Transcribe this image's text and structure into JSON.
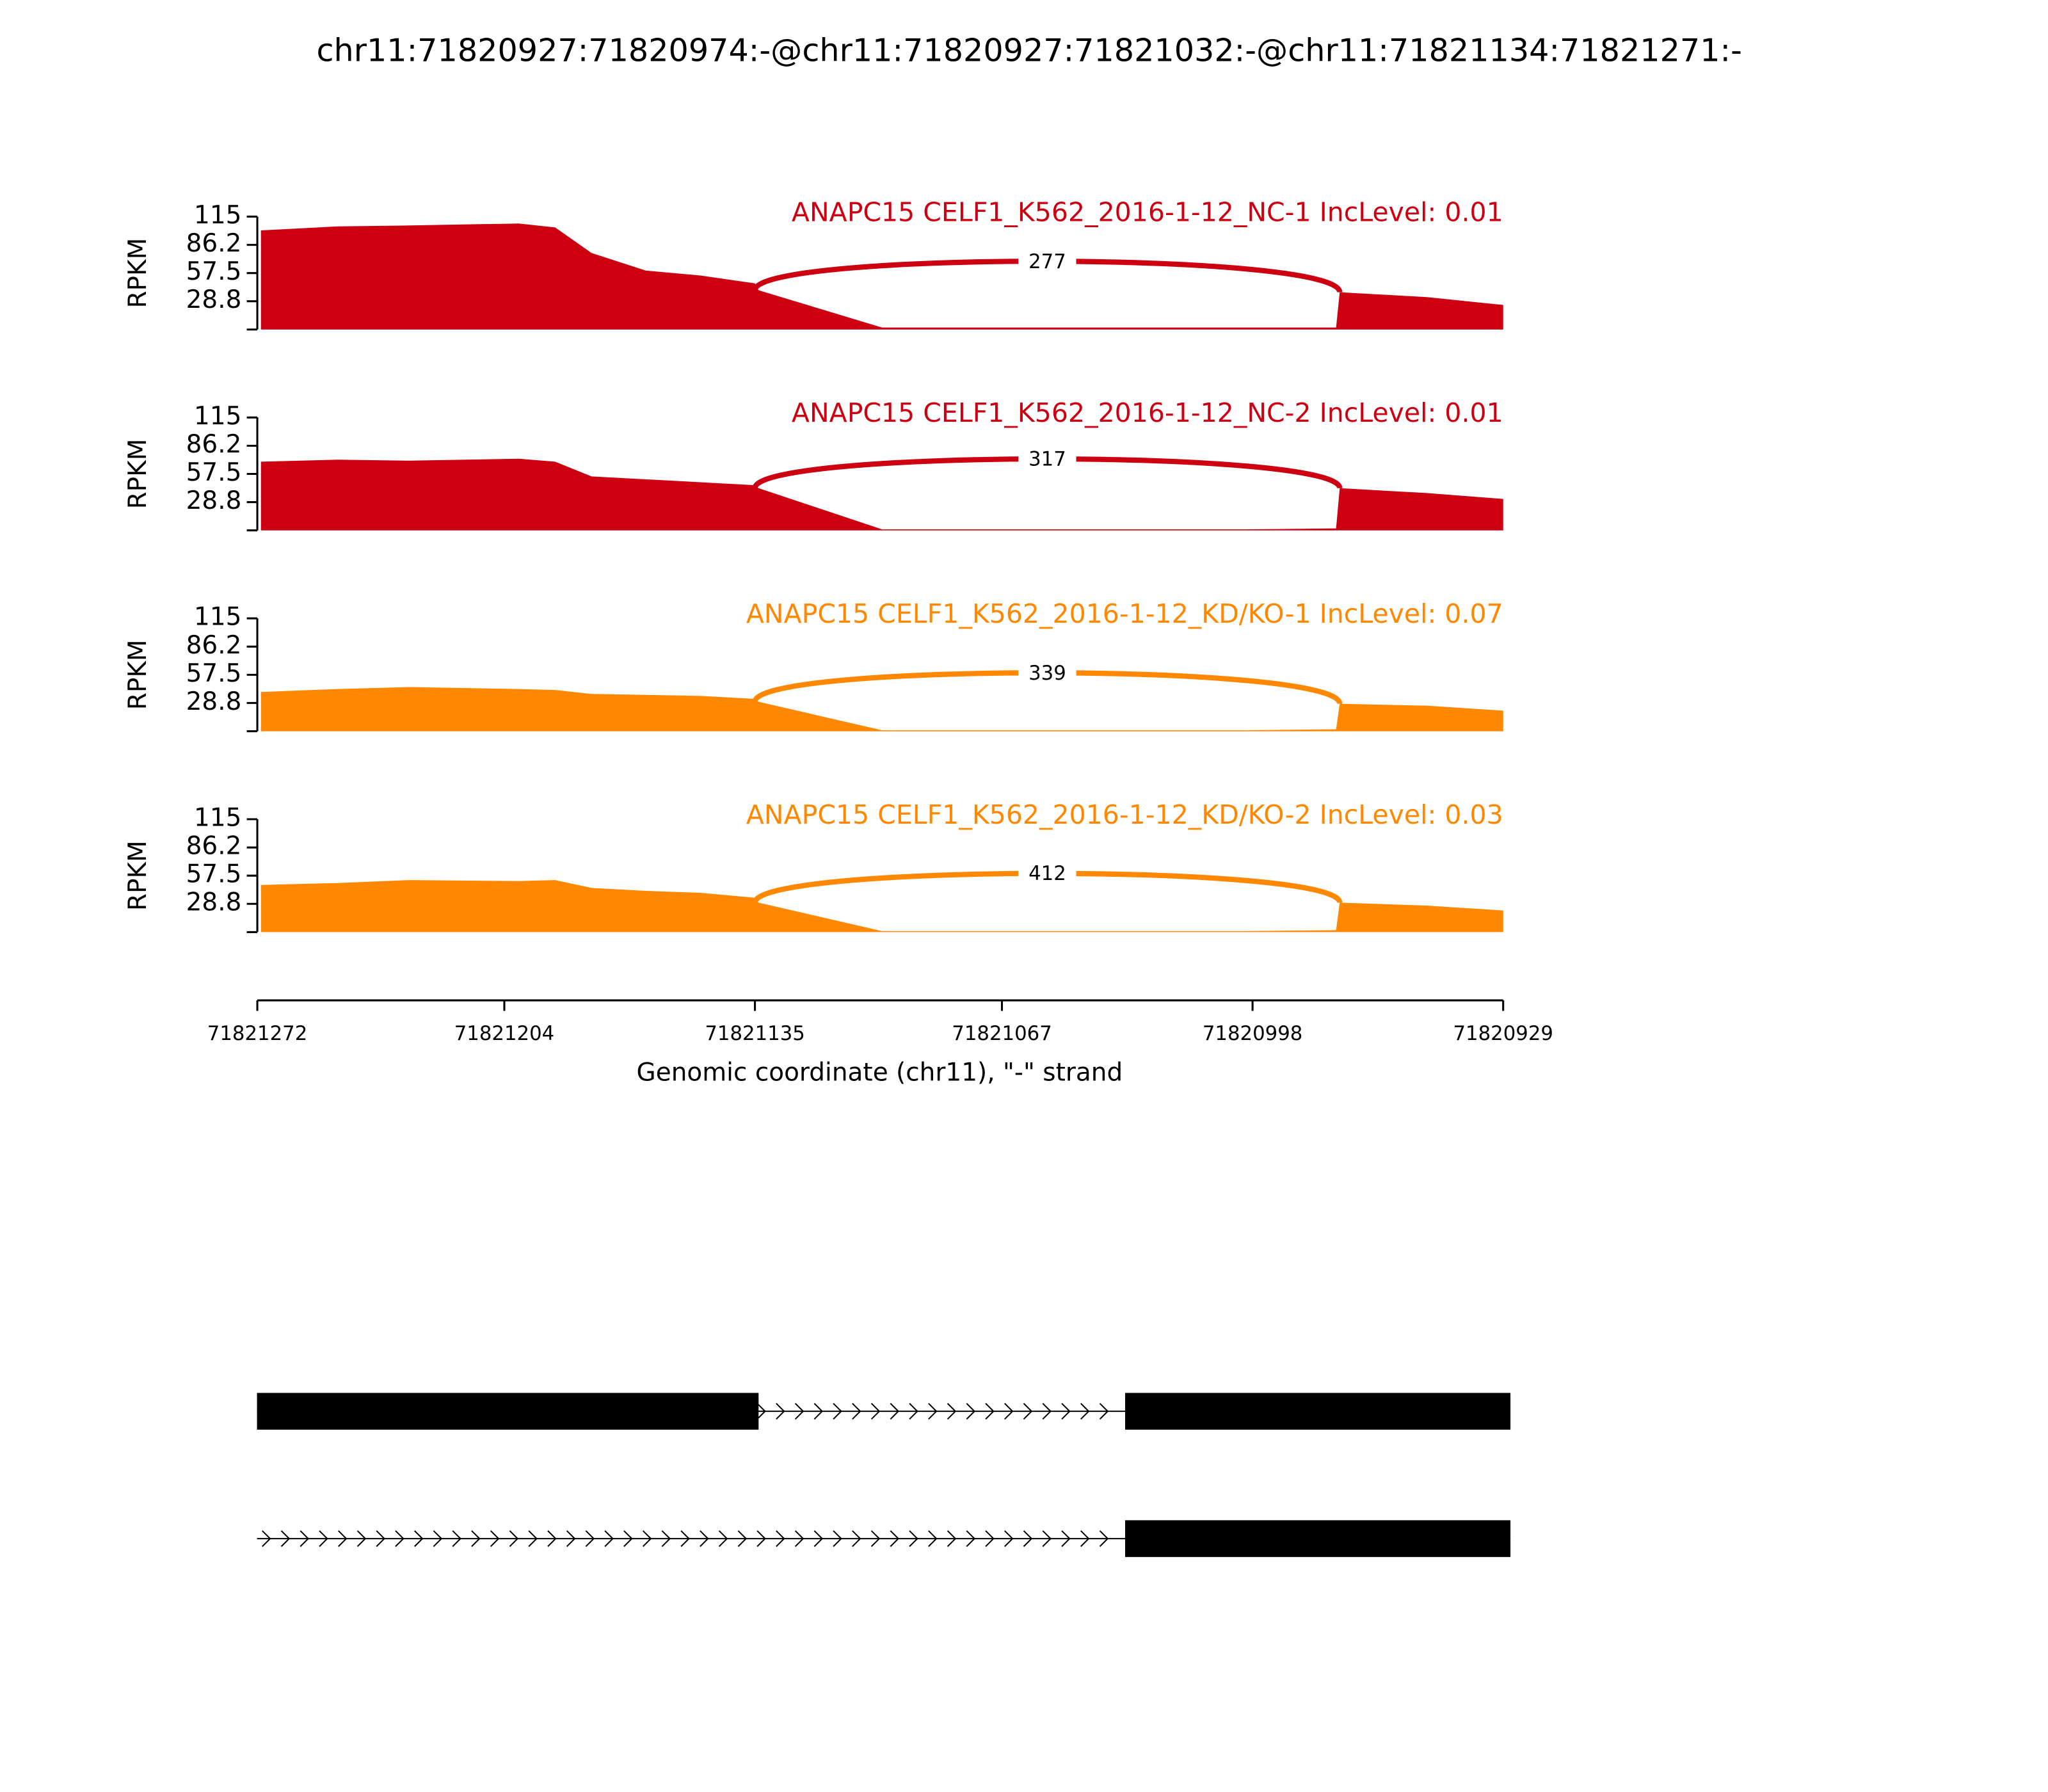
{
  "chart_data": {
    "type": "sashimi",
    "title": "chr11:71820927:71820974:-@chr11:71820927:71821032:-@chr11:71821134:71821271:-",
    "x_label": "Genomic coordinate (chr11), \"-\" strand",
    "xlim": [
      71821272,
      71820929
    ],
    "xticks": [
      71821272,
      71821204,
      71821135,
      71821067,
      71820998,
      71820929
    ],
    "y_label": "RPKM",
    "ylim": [
      0,
      115
    ],
    "yticks": [
      28.8,
      57.5,
      86.2,
      115
    ],
    "x": [
      71821271,
      71821250,
      71821230,
      71821200,
      71821190,
      71821180,
      71821165,
      71821150,
      71821135,
      71821134,
      71821100,
      71821050,
      71821000,
      71820975,
      71820974,
      71820950,
      71820929
    ],
    "panels": [
      {
        "label": "ANAPC15 CELF1_K562_2016-1-12_NC-1 IncLevel: 0.01",
        "color": "#cc0011",
        "values": [
          101,
          105,
          106,
          108,
          104,
          78,
          60,
          55,
          47,
          40,
          2,
          2,
          2,
          2,
          38,
          33,
          25
        ],
        "junction": {
          "start": 71821135,
          "end": 71820974,
          "count": 277
        }
      },
      {
        "label": "ANAPC15 CELF1_K562_2016-1-12_NC-2 IncLevel: 0.01",
        "color": "#cc0011",
        "values": [
          70,
          72,
          71,
          73,
          70,
          55,
          52,
          49,
          46,
          43,
          1,
          1,
          1,
          2,
          43,
          38,
          32
        ],
        "junction": {
          "start": 71821135,
          "end": 71820974,
          "count": 317
        }
      },
      {
        "label": "ANAPC15 CELF1_K562_2016-1-12_KD/KO-1 IncLevel: 0.07",
        "color": "#ff8800",
        "values": [
          40,
          43,
          45,
          43,
          42,
          38,
          37,
          36,
          33,
          30,
          1,
          1,
          1,
          2,
          28,
          26,
          21
        ],
        "junction": {
          "start": 71821135,
          "end": 71820974,
          "count": 339
        }
      },
      {
        "label": "ANAPC15 CELF1_K562_2016-1-12_KD/KO-2 IncLevel: 0.03",
        "color": "#ff8800",
        "values": [
          48,
          50,
          53,
          52,
          53,
          45,
          42,
          40,
          35,
          30,
          1,
          1,
          1,
          2,
          30,
          27,
          22
        ],
        "junction": {
          "start": 71821135,
          "end": 71820974,
          "count": 412
        }
      }
    ],
    "transcripts": [
      {
        "span": [
          71821271,
          71820927
        ],
        "exons": [
          [
            71821271,
            71821134
          ],
          [
            71821032,
            71820927
          ]
        ]
      },
      {
        "span": [
          71821271,
          71820927
        ],
        "exons": [
          [
            71821032,
            71820927
          ]
        ]
      }
    ]
  }
}
